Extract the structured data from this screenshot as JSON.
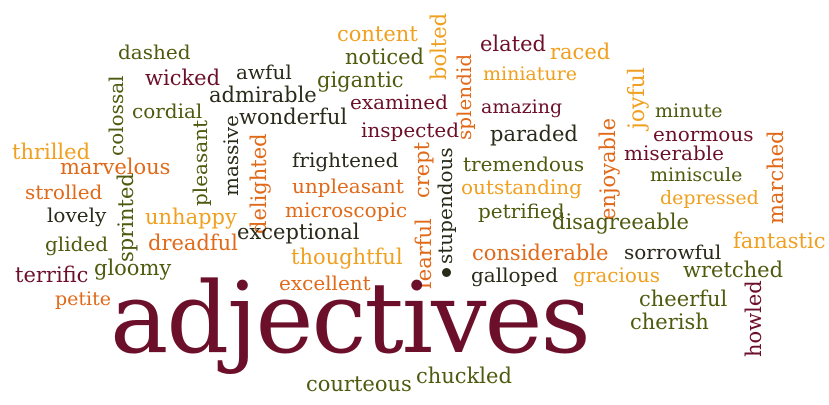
{
  "palette": {
    "maroon": "#6b0f2a",
    "olive": "#4f5a0f",
    "orange": "#e06a1a",
    "gold": "#f0a020",
    "dark": "#2a2a1a"
  },
  "words": [
    {
      "id": "content",
      "text": "content",
      "color": "#f0a020"
    },
    {
      "id": "bolted",
      "text": "bolted",
      "color": "#f0a020"
    },
    {
      "id": "elated",
      "text": "elated",
      "color": "#6b0f2a"
    },
    {
      "id": "raced",
      "text": "raced",
      "color": "#f0a020"
    },
    {
      "id": "dashed",
      "text": "dashed",
      "color": "#4f5a0f"
    },
    {
      "id": "noticed",
      "text": "noticed",
      "color": "#4f5a0f"
    },
    {
      "id": "awful",
      "text": "awful",
      "color": "#2a2a1a"
    },
    {
      "id": "wicked",
      "text": "wicked",
      "color": "#6b0f2a"
    },
    {
      "id": "gigantic",
      "text": "gigantic",
      "color": "#4f5a0f"
    },
    {
      "id": "splendid",
      "text": "splendid",
      "color": "#e06a1a"
    },
    {
      "id": "miniature",
      "text": "miniature",
      "color": "#f0a020"
    },
    {
      "id": "admirable",
      "text": "admirable",
      "color": "#2a2a1a"
    },
    {
      "id": "examined",
      "text": "examined",
      "color": "#6b0f2a"
    },
    {
      "id": "amazing",
      "text": "amazing",
      "color": "#6b0f2a"
    },
    {
      "id": "joyful",
      "text": "joyful",
      "color": "#f0a020"
    },
    {
      "id": "cordial",
      "text": "cordial",
      "color": "#4f5a0f"
    },
    {
      "id": "colossal",
      "text": "colossal",
      "color": "#4f5a0f"
    },
    {
      "id": "wonderful",
      "text": "wonderful",
      "color": "#2a2a1a"
    },
    {
      "id": "minute",
      "text": "minute",
      "color": "#4f5a0f"
    },
    {
      "id": "inspected",
      "text": "inspected",
      "color": "#6b0f2a"
    },
    {
      "id": "paraded",
      "text": "paraded",
      "color": "#2a2a1a"
    },
    {
      "id": "enormous",
      "text": "enormous",
      "color": "#6b0f2a"
    },
    {
      "id": "thrilled",
      "text": "thrilled",
      "color": "#f0a020"
    },
    {
      "id": "pleasant",
      "text": "pleasant",
      "color": "#4f5a0f"
    },
    {
      "id": "massive",
      "text": "massive",
      "color": "#2a2a1a"
    },
    {
      "id": "enjoyable",
      "text": "enjoyable",
      "color": "#e06a1a"
    },
    {
      "id": "miserable",
      "text": "miserable",
      "color": "#6b0f2a"
    },
    {
      "id": "marvelous",
      "text": "marvelous",
      "color": "#e06a1a"
    },
    {
      "id": "frightened",
      "text": "frightened",
      "color": "#2a2a1a"
    },
    {
      "id": "crept",
      "text": "crept",
      "color": "#e06a1a"
    },
    {
      "id": "tremendous",
      "text": "tremendous",
      "color": "#4f5a0f"
    },
    {
      "id": "miniscule",
      "text": "miniscule",
      "color": "#4f5a0f"
    },
    {
      "id": "delighted",
      "text": "delighted",
      "color": "#e06a1a"
    },
    {
      "id": "marched",
      "text": "marched",
      "color": "#e06a1a"
    },
    {
      "id": "strolled",
      "text": "strolled",
      "color": "#e06a1a"
    },
    {
      "id": "unpleasant",
      "text": "unpleasant",
      "color": "#e06a1a"
    },
    {
      "id": "outstanding",
      "text": "outstanding",
      "color": "#f0a020"
    },
    {
      "id": "depressed",
      "text": "depressed",
      "color": "#f0a020"
    },
    {
      "id": "sprinted",
      "text": "sprinted",
      "color": "#4f5a0f"
    },
    {
      "id": "stupendous",
      "text": "stupendous",
      "color": "#2a2a1a"
    },
    {
      "id": "lovely",
      "text": "lovely",
      "color": "#2a2a1a"
    },
    {
      "id": "unhappy",
      "text": "unhappy",
      "color": "#f0a020"
    },
    {
      "id": "microscopic",
      "text": "microscopic",
      "color": "#e06a1a"
    },
    {
      "id": "petrified",
      "text": "petrified",
      "color": "#4f5a0f"
    },
    {
      "id": "disagreeable",
      "text": "disagreeable",
      "color": "#4f5a0f"
    },
    {
      "id": "exceptional",
      "text": "exceptional",
      "color": "#2a2a1a"
    },
    {
      "id": "fearful",
      "text": "fearful",
      "color": "#e06a1a"
    },
    {
      "id": "fantastic",
      "text": "fantastic",
      "color": "#f0a020"
    },
    {
      "id": "glided",
      "text": "glided",
      "color": "#4f5a0f"
    },
    {
      "id": "dreadful",
      "text": "dreadful",
      "color": "#e06a1a"
    },
    {
      "id": "considerable",
      "text": "considerable",
      "color": "#e06a1a"
    },
    {
      "id": "sorrowful",
      "text": "sorrowful",
      "color": "#2a2a1a"
    },
    {
      "id": "thoughtful",
      "text": "thoughtful",
      "color": "#f0a020"
    },
    {
      "id": "terrific",
      "text": "terrific",
      "color": "#6b0f2a"
    },
    {
      "id": "gloomy",
      "text": "gloomy",
      "color": "#4f5a0f"
    },
    {
      "id": "galloped",
      "text": "galloped",
      "color": "#2a2a1a"
    },
    {
      "id": "gracious",
      "text": "gracious",
      "color": "#f0a020"
    },
    {
      "id": "wretched",
      "text": "wretched",
      "color": "#4f5a0f"
    },
    {
      "id": "petite",
      "text": "petite",
      "color": "#e06a1a"
    },
    {
      "id": "excellent",
      "text": "excellent",
      "color": "#e06a1a"
    },
    {
      "id": "howled",
      "text": "howled",
      "color": "#6b0f2a"
    },
    {
      "id": "cheerful",
      "text": "cheerful",
      "color": "#4f5a0f"
    },
    {
      "id": "cherish",
      "text": "cherish",
      "color": "#4f5a0f"
    },
    {
      "id": "adjectives",
      "text": "adjectives",
      "color": "#6b0f2a"
    },
    {
      "id": "courteous",
      "text": "courteous",
      "color": "#4f5a0f"
    },
    {
      "id": "chuckled",
      "text": "chuckled",
      "color": "#4f5a0f"
    }
  ]
}
